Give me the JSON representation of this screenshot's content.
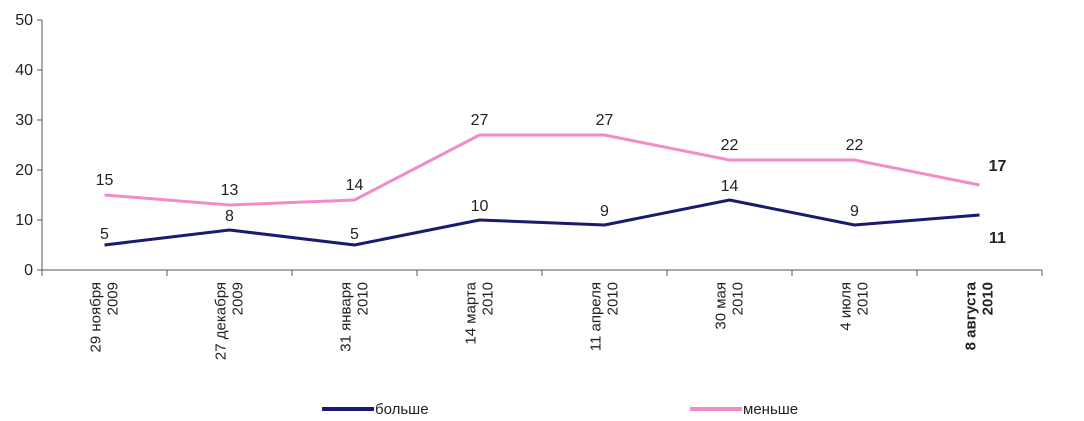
{
  "chart_data": {
    "type": "line",
    "categories": [
      [
        "29 ноября",
        "2009"
      ],
      [
        "27 декабря",
        "2009"
      ],
      [
        "31 января",
        "2010"
      ],
      [
        "14 марта",
        "2010"
      ],
      [
        "11 апреля",
        "2010"
      ],
      [
        "30 мая",
        "2010"
      ],
      [
        "4 июля",
        "2010"
      ],
      [
        "8 августа",
        "2010"
      ]
    ],
    "series": [
      {
        "name": "больше",
        "values": [
          5,
          8,
          5,
          10,
          9,
          14,
          9,
          11
        ],
        "color": "#1a1a6e"
      },
      {
        "name": "меньше",
        "values": [
          15,
          13,
          14,
          27,
          27,
          22,
          22,
          17
        ],
        "color": "#f28cc8"
      }
    ],
    "ylim": [
      0,
      50
    ],
    "yticks": [
      0,
      10,
      20,
      30,
      40,
      50
    ],
    "grid": false,
    "legend": "bottom",
    "last_point_bold": true
  }
}
